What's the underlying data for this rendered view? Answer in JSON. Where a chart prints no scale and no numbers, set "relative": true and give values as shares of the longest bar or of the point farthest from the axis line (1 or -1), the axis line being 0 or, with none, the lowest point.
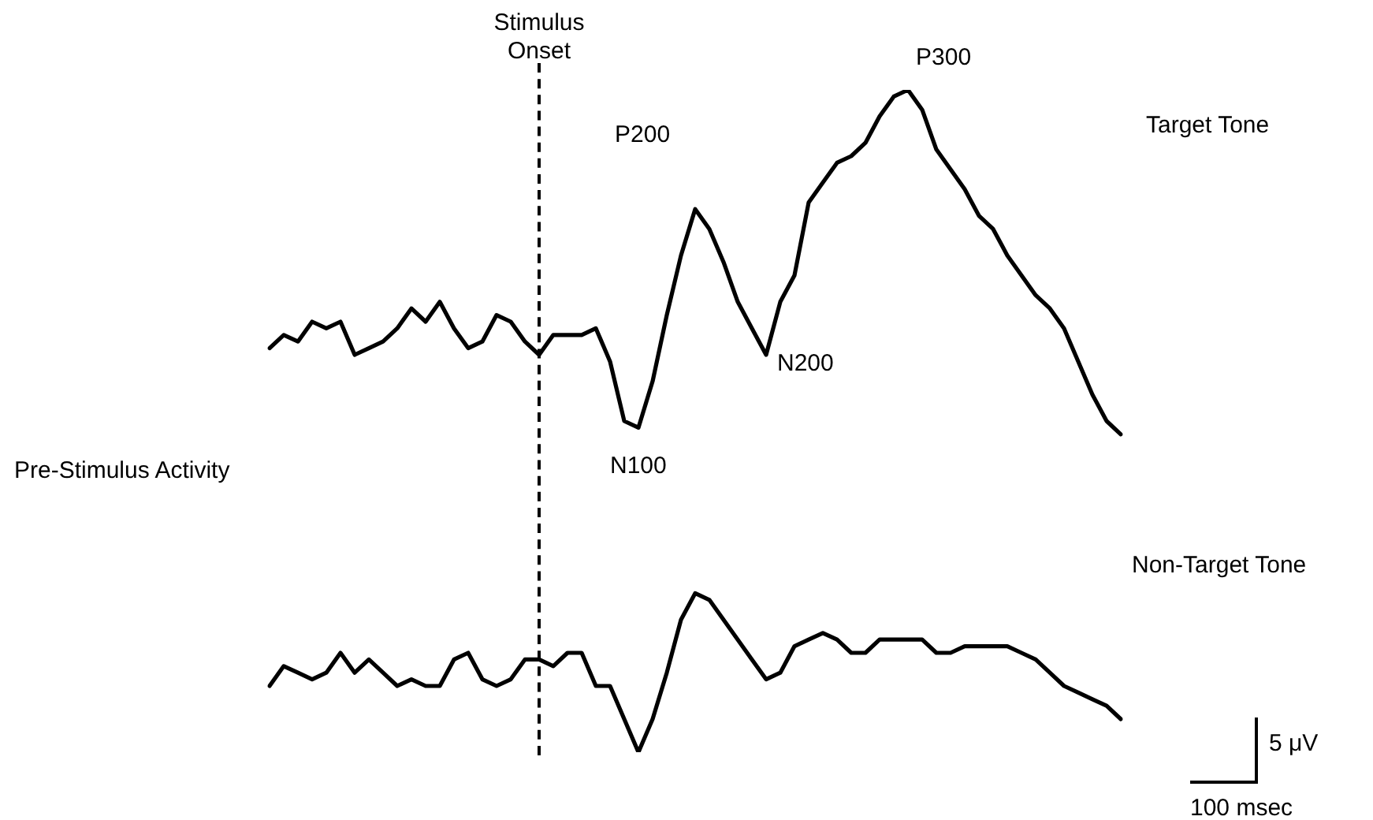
{
  "chart_data": {
    "type": "line",
    "relative": true,
    "categories": [
      null,
      null,
      null,
      null,
      null,
      null,
      null,
      null,
      null,
      null,
      null,
      null,
      null,
      null,
      null,
      null,
      null,
      null,
      null,
      null,
      null,
      null,
      null,
      null,
      null,
      null,
      null,
      null,
      null,
      null,
      null,
      null,
      null,
      null,
      null,
      null,
      null,
      null,
      null,
      null,
      null,
      null,
      null,
      null,
      null,
      null,
      null,
      null,
      null,
      null,
      null,
      null,
      null,
      null,
      null,
      null,
      null,
      null,
      null,
      null,
      null
    ],
    "series": [
      {
        "name": "Target Tone",
        "color": "#000000",
        "values": [
          0.61,
          0.63,
          0.62,
          0.65,
          0.64,
          0.65,
          0.6,
          0.61,
          0.62,
          0.64,
          0.67,
          0.65,
          0.68,
          0.64,
          0.61,
          0.62,
          0.66,
          0.65,
          0.62,
          0.6,
          0.63,
          0.63,
          0.63,
          0.64,
          0.59,
          0.5,
          0.49,
          0.56,
          0.66,
          0.75,
          0.82,
          0.79,
          0.74,
          0.68,
          0.64,
          0.6,
          0.68,
          0.72,
          0.83,
          0.86,
          0.89,
          0.9,
          0.92,
          0.96,
          0.99,
          1,
          0.97,
          0.91,
          0.88,
          0.85,
          0.81,
          0.79,
          0.75,
          0.72,
          0.69,
          0.67,
          0.64,
          0.59,
          0.54,
          0.5,
          0.48
        ]
      },
      {
        "name": "Non-Target Tone",
        "color": "#000000",
        "values": [
          0.1,
          0.13,
          0.12,
          0.11,
          0.12,
          0.15,
          0.12,
          0.14,
          0.12,
          0.1,
          0.11,
          0.1,
          0.1,
          0.14,
          0.15,
          0.11,
          0.1,
          0.11,
          0.14,
          0.14,
          0.13,
          0.15,
          0.15,
          0.1,
          0.1,
          0.05,
          0,
          0.05,
          0.12,
          0.2,
          0.24,
          0.23,
          0.2,
          0.17,
          0.14,
          0.11,
          0.12,
          0.16,
          0.17,
          0.18,
          0.17,
          0.15,
          0.15,
          0.17,
          0.17,
          0.17,
          0.17,
          0.15,
          0.15,
          0.16,
          0.16,
          0.16,
          0.16,
          0.15,
          0.14,
          0.12,
          0.1,
          0.09,
          0.08,
          0.07,
          0.05
        ]
      }
    ],
    "annotations": [
      "Stimulus Onset",
      "P200",
      "P300",
      "N100",
      "N200",
      "Pre-Stimulus Activity",
      "5 μV",
      "100 msec"
    ],
    "legend": false,
    "marker": "none",
    "line_style": "solid"
  }
}
